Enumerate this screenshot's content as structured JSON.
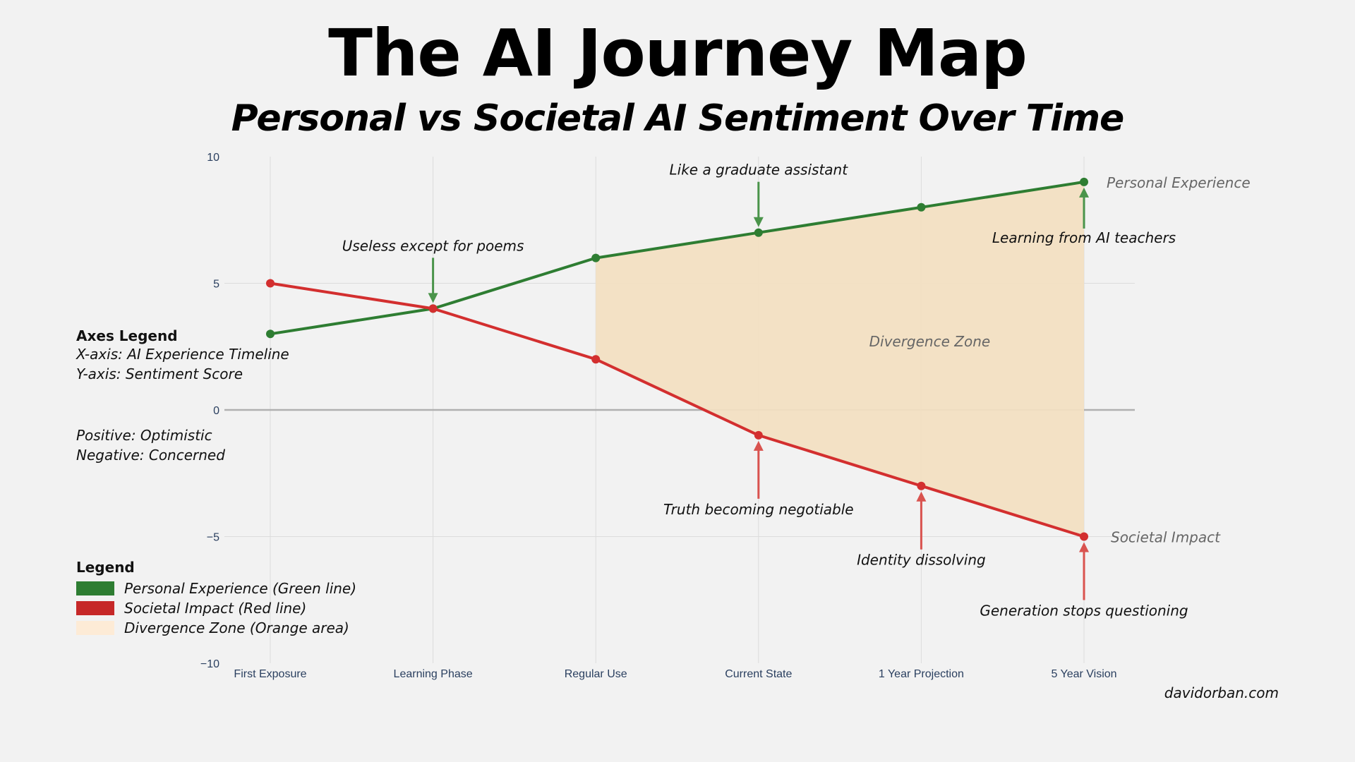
{
  "header": {
    "title": "The AI Journey Map",
    "subtitle": "Personal vs Societal AI Sentiment Over Time"
  },
  "axes_legend": {
    "heading": "Axes Legend",
    "x_desc": "X-axis: AI Experience Timeline",
    "y_desc": "Y-axis: Sentiment Score",
    "positive": "Positive: Optimistic",
    "negative": "Negative: Concerned"
  },
  "legend": {
    "heading": "Legend",
    "items": [
      {
        "label": "Personal Experience (Green line)",
        "color": "#2e7d32"
      },
      {
        "label": "Societal Impact (Red line)",
        "color": "#c62828"
      },
      {
        "label": "Divergence Zone (Orange area)",
        "color": "#fdebd6"
      }
    ]
  },
  "credit": "davidorban.com",
  "chart_data": {
    "type": "line",
    "title": "The AI Journey Map",
    "xlabel": "AI Experience Timeline",
    "ylabel": "Sentiment Score",
    "categories": [
      "First Exposure",
      "Learning Phase",
      "Regular Use",
      "Current State",
      "1 Year Projection",
      "5 Year Vision"
    ],
    "ylim": [
      -10,
      10
    ],
    "yticks": [
      10,
      5,
      0,
      -5,
      -10
    ],
    "ytick_labels": [
      "10",
      "5",
      "0",
      "−5",
      "−10"
    ],
    "grid": true,
    "series": [
      {
        "name": "Personal Experience",
        "color": "#2e7d32",
        "values": [
          3,
          4,
          6,
          7,
          8,
          9
        ]
      },
      {
        "name": "Societal Impact",
        "color": "#d32f2f",
        "values": [
          5,
          4,
          2,
          -1,
          -3,
          -5
        ]
      }
    ],
    "area": {
      "name": "Divergence Zone",
      "from_index": 2,
      "to_index": 5,
      "color": "#f2dfc2"
    },
    "annotations": [
      {
        "text": "Useless except for poems",
        "index": 1,
        "value": 4,
        "side": "above",
        "color": "#4a944a"
      },
      {
        "text": "Like a graduate assistant",
        "index": 3,
        "value": 7,
        "side": "above",
        "color": "#4a944a"
      },
      {
        "text": "Learning from AI teachers",
        "index": 5,
        "value": 9,
        "side": "below",
        "color": "#4a944a"
      },
      {
        "text": "Truth becoming negotiable",
        "index": 3,
        "value": -1,
        "side": "below",
        "color": "#d9534f"
      },
      {
        "text": "Identity dissolving",
        "index": 4,
        "value": -3,
        "side": "below",
        "color": "#d9534f"
      },
      {
        "text": "Generation stops questioning",
        "index": 5,
        "value": -5,
        "side": "below",
        "color": "#d9534f"
      }
    ],
    "series_labels": [
      {
        "text": "Personal Experience",
        "index": 5,
        "value": 9
      },
      {
        "text": "Societal Impact",
        "index": 5,
        "value": -5
      }
    ],
    "zone_label": {
      "text": "Divergence Zone",
      "index": 4,
      "value": 2.7
    }
  }
}
